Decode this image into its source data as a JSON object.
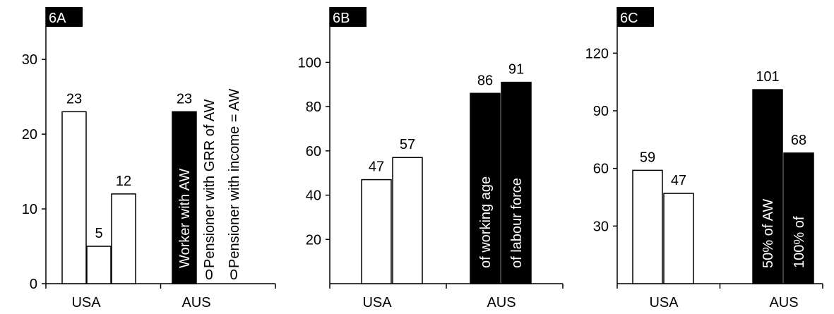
{
  "chart_data": [
    {
      "type": "bar",
      "panel_label": "6A",
      "categories": [
        "USA",
        "AUS"
      ],
      "ylim": [
        0,
        37
      ],
      "yticks": [
        0,
        10,
        20,
        30
      ],
      "series": [
        {
          "fill": "#ffffff",
          "values": [
            23,
            23
          ],
          "labels": [
            "23",
            "23"
          ],
          "inbar": [
            "",
            "Worker with AW"
          ]
        },
        {
          "fill": "#ffffff",
          "values": [
            5,
            0
          ],
          "labels": [
            "5",
            "0"
          ],
          "inbar": [
            "",
            "Pensioner with GRR of AW"
          ]
        },
        {
          "fill": "#ffffff",
          "values": [
            12,
            0
          ],
          "labels": [
            "12",
            "0"
          ],
          "inbar": [
            "",
            "Pensioner with income = AW"
          ]
        }
      ],
      "bar_fills": [
        [
          "#ffffff",
          "#000000"
        ],
        [
          "#ffffff",
          "#ffffff"
        ],
        [
          "#ffffff",
          "#ffffff"
        ]
      ]
    },
    {
      "type": "bar",
      "panel_label": "6B",
      "categories": [
        "USA",
        "AUS"
      ],
      "ylim": [
        0,
        125
      ],
      "yticks": [
        20,
        40,
        60,
        80,
        100
      ],
      "series": [
        {
          "values": [
            47,
            86
          ],
          "labels": [
            "47",
            "86"
          ],
          "inbar": [
            "",
            "of working age"
          ]
        },
        {
          "values": [
            57,
            91
          ],
          "labels": [
            "57",
            "91"
          ],
          "inbar": [
            "",
            "of labour force"
          ]
        }
      ],
      "bar_fills": [
        [
          "#ffffff",
          "#000000"
        ],
        [
          "#ffffff",
          "#000000"
        ]
      ]
    },
    {
      "type": "bar",
      "panel_label": "6C",
      "categories": [
        "USA",
        "AUS"
      ],
      "ylim": [
        0,
        144
      ],
      "yticks": [
        30,
        60,
        90,
        120
      ],
      "series": [
        {
          "values": [
            59,
            101
          ],
          "labels": [
            "59",
            "101"
          ],
          "inbar": [
            "",
            "50% of AW"
          ]
        },
        {
          "values": [
            47,
            68
          ],
          "labels": [
            "47",
            "68"
          ],
          "inbar": [
            "",
            "100% of"
          ]
        }
      ],
      "bar_fills": [
        [
          "#ffffff",
          "#000000"
        ],
        [
          "#ffffff",
          "#000000"
        ]
      ]
    }
  ]
}
